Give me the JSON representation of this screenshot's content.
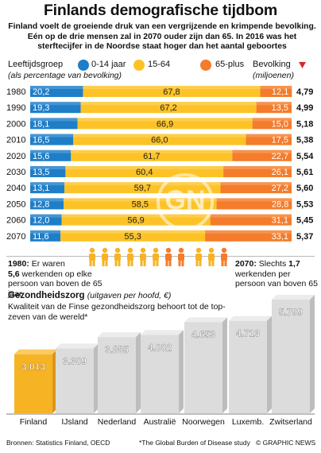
{
  "title": "Finlands demografische tijdbom",
  "subtitle": "Finland voelt de groeiende druk van een vergrijzende en krimpende bevolking. Eén op de drie mensen zal in 2070 ouder zijn dan 65. In 2016 was het sterftecijfer in de Noordse staat hoger dan het aantal geboortes",
  "legend": {
    "group_label": "Leeftijdsgroep",
    "group_sub": "(als percentage van bevolking)",
    "items": [
      {
        "label": "0-14 jaar",
        "color": "#1e7ec8"
      },
      {
        "label": "15-64",
        "color": "#fdc326"
      },
      {
        "label": "65-plus",
        "color": "#f47c2a"
      }
    ],
    "population_label": "Bevolking",
    "population_sub": "(miljoenen)"
  },
  "chart_data": [
    {
      "type": "bar",
      "stacked": true,
      "orientation": "horizontal",
      "categories": [
        "1980",
        "1990",
        "2000",
        "2010",
        "2020",
        "2030",
        "2040",
        "2050",
        "2060",
        "2070"
      ],
      "series": [
        {
          "name": "0-14 jaar",
          "color": "#1e7ec8",
          "values": [
            20.2,
            19.3,
            18.1,
            16.5,
            15.6,
            13.5,
            13.1,
            12.8,
            12.0,
            11.6
          ]
        },
        {
          "name": "15-64",
          "color": "#fdc326",
          "values": [
            67.8,
            67.2,
            66.9,
            66.0,
            61.7,
            60.4,
            59.7,
            58.5,
            56.9,
            55.3
          ]
        },
        {
          "name": "65-plus",
          "color": "#f47c2a",
          "values": [
            12.1,
            13.5,
            15.0,
            17.5,
            22.7,
            26.1,
            27.2,
            28.8,
            31.1,
            33.1
          ]
        }
      ],
      "population": [
        4.79,
        4.99,
        5.18,
        5.38,
        5.54,
        5.61,
        5.6,
        5.53,
        5.45,
        5.37
      ],
      "xlim": [
        0,
        100
      ]
    },
    {
      "type": "bar",
      "title": "Gezondheidszorg",
      "title_note": "(uitgaven per hoofd, €)",
      "subtitle": "Kwaliteit van de Finse gezondheidszorg behoort tot de top-zeven van de wereld*",
      "categories": [
        "Finland",
        "IJsland",
        "Nederland",
        "Australië",
        "Noorwegen",
        "Luxemb.",
        "Zwitserland"
      ],
      "values": [
        3013,
        3309,
        3885,
        4002,
        4653,
        4713,
        5799
      ],
      "value_labels": [
        "3.013",
        "3.309",
        "3.885",
        "4.002",
        "4.653",
        "4.713",
        "5.799"
      ],
      "highlight_color": "#f6b324",
      "bar_color": "#dcdcdc"
    }
  ],
  "notes": {
    "left_year": "1980:",
    "left_text": " Er waren",
    "left_value": "5,6",
    "left_rest": " werkenden op elke persoon van boven de 65 jaar",
    "right_year": "2070:",
    "right_text": " Slechts ",
    "right_value": "1,7",
    "right_rest": " werkenden per persoon van boven 65"
  },
  "footer": {
    "source": "Bronnen: Statistics Finland, OECD",
    "footnote": "*The Global Burden of Disease study",
    "credit": "© GRAPHIC NEWS"
  },
  "watermark": "GN"
}
